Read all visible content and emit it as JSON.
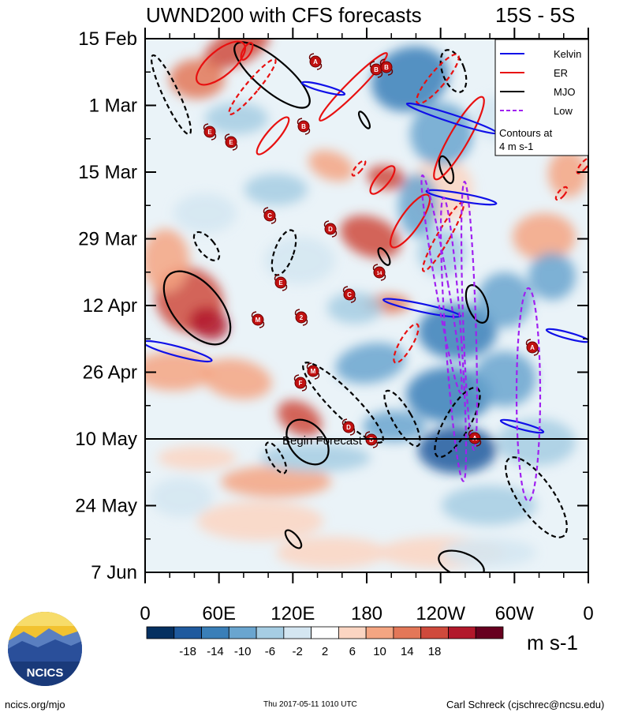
{
  "chart_data": {
    "type": "heatmap",
    "title": "UWND200 with CFS forecasts",
    "region": "15S - 5S",
    "y_ticks": [
      "15 Feb",
      "1 Mar",
      "15 Mar",
      "29 Mar",
      "12 Apr",
      "26 Apr",
      "10 May",
      "24 May",
      "7 Jun"
    ],
    "x_ticks": [
      "0",
      "60E",
      "120E",
      "180",
      "120W",
      "60W",
      "0"
    ],
    "forecast_line": {
      "date": "10 May",
      "label": "Begin Forecast"
    },
    "colorbar": {
      "ticks": [
        "-18",
        "-14",
        "-10",
        "-6",
        "-2",
        "2",
        "6",
        "10",
        "14",
        "18"
      ],
      "colors": [
        "#053061",
        "#1f5a9e",
        "#3a7fb8",
        "#6aa5cf",
        "#a6cde3",
        "#d4e6f1",
        "#ffffff",
        "#fbd5c2",
        "#f4a582",
        "#e37758",
        "#cf4a3c",
        "#b2182b",
        "#67001f"
      ],
      "unit": "m s-1"
    },
    "legend": {
      "entries": [
        {
          "name": "Kelvin",
          "color": "#1010e8"
        },
        {
          "name": "ER",
          "color": "#e81010"
        },
        {
          "name": "MJO",
          "color": "#000000"
        },
        {
          "name": "Low",
          "color": "#a020f0"
        }
      ],
      "note": "Contours at 4 m s-1",
      "placement": "top-right"
    },
    "storm_markers": [
      "A",
      "B",
      "B",
      "E",
      "E",
      "B",
      "C",
      "D",
      "E",
      "14",
      "C",
      "M",
      "2",
      "M",
      "F",
      "D",
      "D",
      "A",
      "A"
    ]
  },
  "footer": {
    "logo_text": "NCICS",
    "url": "ncics.org/mjo",
    "timestamp": "Thu 2017-05-11 1010 UTC",
    "author": "Carl Schreck (cjschrec@ncsu.edu)"
  }
}
